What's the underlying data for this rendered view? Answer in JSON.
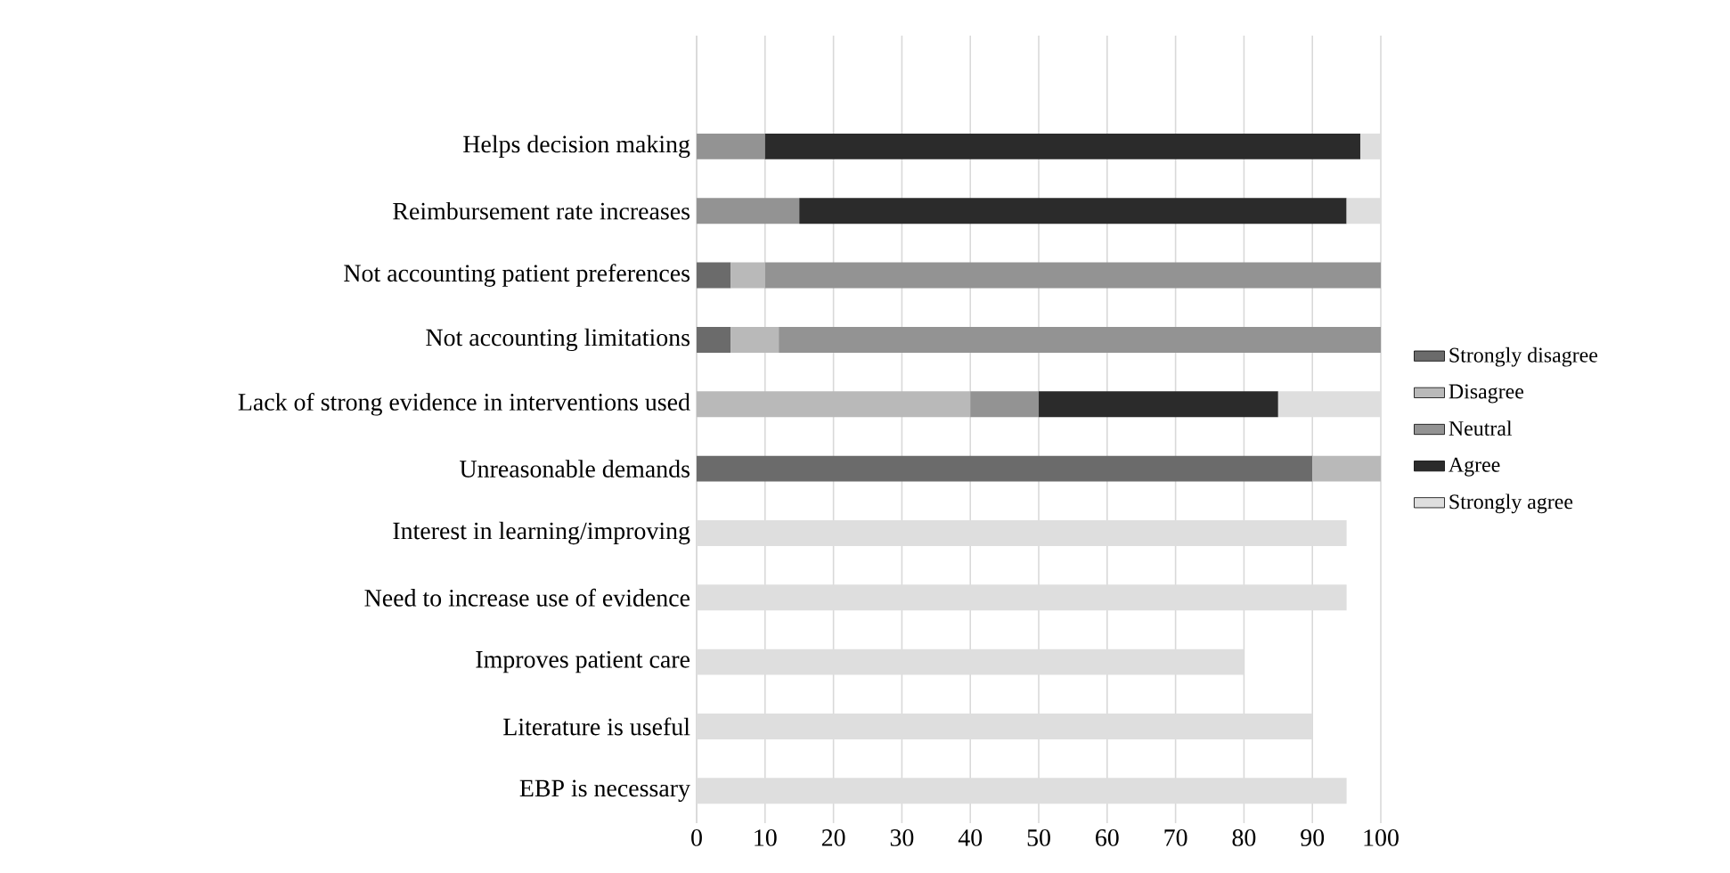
{
  "chart_data": {
    "type": "bar",
    "orientation": "horizontal",
    "stacked": true,
    "categories": [
      "Helps decision making",
      "Reimbursement rate increases",
      "Not accounting patient preferences",
      "Not accounting limitations",
      "Lack of strong evidence in interventions used",
      "Unreasonable demands",
      "Interest in learning/improving",
      "Need to increase use of evidence",
      "Improves patient care",
      "Literature is useful",
      "EBP is necessary"
    ],
    "series": [
      {
        "name": "Strongly disagree",
        "color": "#6b6b6b",
        "values": [
          null,
          null,
          5,
          5,
          null,
          90,
          null,
          null,
          null,
          null,
          null
        ]
      },
      {
        "name": "Disagree",
        "color": "#b9b9b9",
        "values": [
          null,
          null,
          5,
          7,
          40,
          10,
          null,
          null,
          null,
          null,
          null
        ]
      },
      {
        "name": "Neutral",
        "color": "#939393",
        "values": [
          10,
          15,
          90,
          88,
          10,
          null,
          null,
          null,
          null,
          null,
          null
        ]
      },
      {
        "name": "Agree",
        "color": "#2b2b2b",
        "values": [
          87,
          80,
          null,
          null,
          35,
          null,
          null,
          null,
          null,
          null,
          null
        ]
      },
      {
        "name": "Strongly agree",
        "color": "#dedede",
        "values": [
          3,
          5,
          null,
          null,
          15,
          null,
          95,
          95,
          80,
          90,
          95
        ]
      }
    ],
    "xlim": [
      0,
      100
    ],
    "xticks": [
      0,
      10,
      20,
      30,
      40,
      50,
      60,
      70,
      80,
      90,
      100
    ],
    "grid": "x",
    "legend": "right"
  }
}
